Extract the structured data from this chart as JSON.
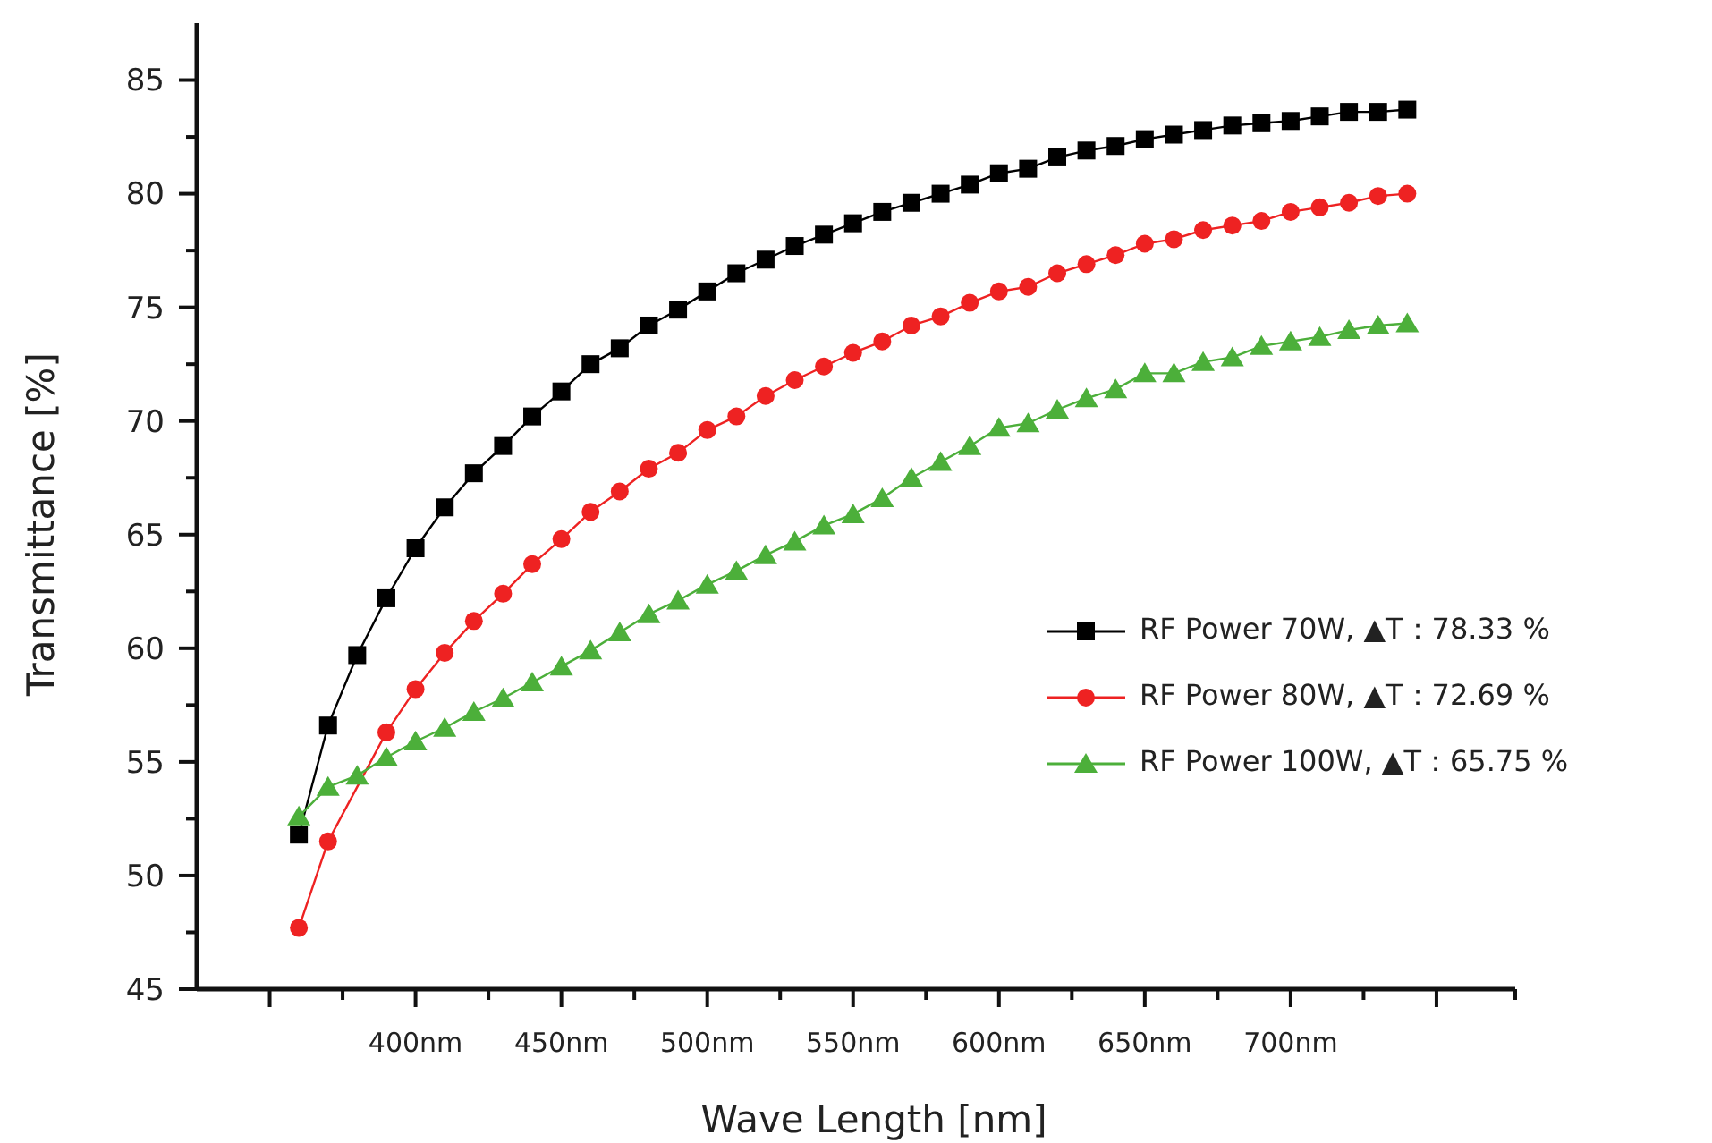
{
  "chart_data": {
    "type": "line",
    "xlabel": "Wave Length [nm]",
    "ylabel": "Transmittance [%]",
    "x": [
      360,
      370,
      380,
      390,
      400,
      410,
      420,
      430,
      440,
      450,
      460,
      470,
      480,
      490,
      500,
      510,
      520,
      530,
      540,
      550,
      560,
      570,
      580,
      590,
      600,
      610,
      620,
      630,
      640,
      650,
      660,
      670,
      680,
      690,
      700,
      710,
      720,
      730,
      740
    ],
    "xlim": [
      325,
      777
    ],
    "xticks": [
      {
        "value": 350,
        "label": null
      },
      {
        "value": 375,
        "label": null
      },
      {
        "value": 400,
        "label": "400nm"
      },
      {
        "value": 425,
        "label": null
      },
      {
        "value": 450,
        "label": "450nm"
      },
      {
        "value": 475,
        "label": null
      },
      {
        "value": 500,
        "label": "500nm"
      },
      {
        "value": 525,
        "label": null
      },
      {
        "value": 550,
        "label": "550nm"
      },
      {
        "value": 575,
        "label": null
      },
      {
        "value": 600,
        "label": "600nm"
      },
      {
        "value": 625,
        "label": null
      },
      {
        "value": 650,
        "label": "650nm"
      },
      {
        "value": 675,
        "label": null
      },
      {
        "value": 700,
        "label": "700nm"
      },
      {
        "value": 725,
        "label": null
      },
      {
        "value": 750,
        "label": null
      }
    ],
    "ylim": [
      45,
      87.5
    ],
    "yticks": [
      45,
      {
        "value": 47.5,
        "label": null
      },
      50,
      {
        "value": 52.5,
        "label": null
      },
      55,
      {
        "value": 57.5,
        "label": null
      },
      60,
      {
        "value": 62.5,
        "label": null
      },
      65,
      {
        "value": 67.5,
        "label": null
      },
      70,
      {
        "value": 72.5,
        "label": null
      },
      75,
      {
        "value": 77.5,
        "label": null
      },
      80,
      {
        "value": 82.5,
        "label": null
      },
      85
    ],
    "legend": "right",
    "line_style": "solid",
    "series": [
      {
        "name": "RF Power 70W, ▲T：78.33 %",
        "color": "#000000",
        "marker": "square",
        "values": [
          51.8,
          56.6,
          59.7,
          62.2,
          64.4,
          66.2,
          67.7,
          68.9,
          70.2,
          71.3,
          72.5,
          73.2,
          74.2,
          74.9,
          75.7,
          76.5,
          77.1,
          77.7,
          78.2,
          78.7,
          79.2,
          79.6,
          80.0,
          80.4,
          80.9,
          81.1,
          81.6,
          81.9,
          82.1,
          82.4,
          82.6,
          82.8,
          83.0,
          83.1,
          83.2,
          83.4,
          83.6,
          83.6,
          83.7
        ]
      },
      {
        "name": "RF Power 80W, ▲T：72.69 %",
        "color": "#ee2222",
        "marker": "circle",
        "values": [
          47.7,
          51.5,
          null,
          56.3,
          58.2,
          59.8,
          61.2,
          62.4,
          63.7,
          64.8,
          66.0,
          66.9,
          67.9,
          68.6,
          69.6,
          70.2,
          71.1,
          71.8,
          72.4,
          73.0,
          73.5,
          74.2,
          74.6,
          75.2,
          75.7,
          75.9,
          76.5,
          76.9,
          77.3,
          77.8,
          78.0,
          78.4,
          78.6,
          78.8,
          79.2,
          79.4,
          79.6,
          79.9,
          80.0
        ]
      },
      {
        "name": "RF Power 100W, ▲T：65.75 %",
        "color": "#4caf3a",
        "marker": "triangle",
        "values": [
          52.6,
          53.9,
          54.4,
          55.2,
          55.9,
          56.5,
          57.2,
          57.8,
          58.5,
          59.2,
          59.9,
          60.7,
          61.5,
          62.1,
          62.8,
          63.4,
          64.1,
          64.7,
          65.4,
          65.9,
          66.6,
          67.5,
          68.2,
          68.9,
          69.7,
          69.9,
          70.5,
          71.0,
          71.4,
          72.1,
          72.1,
          72.6,
          72.8,
          73.3,
          73.5,
          73.7,
          74.0,
          74.2,
          74.3
        ]
      }
    ]
  }
}
